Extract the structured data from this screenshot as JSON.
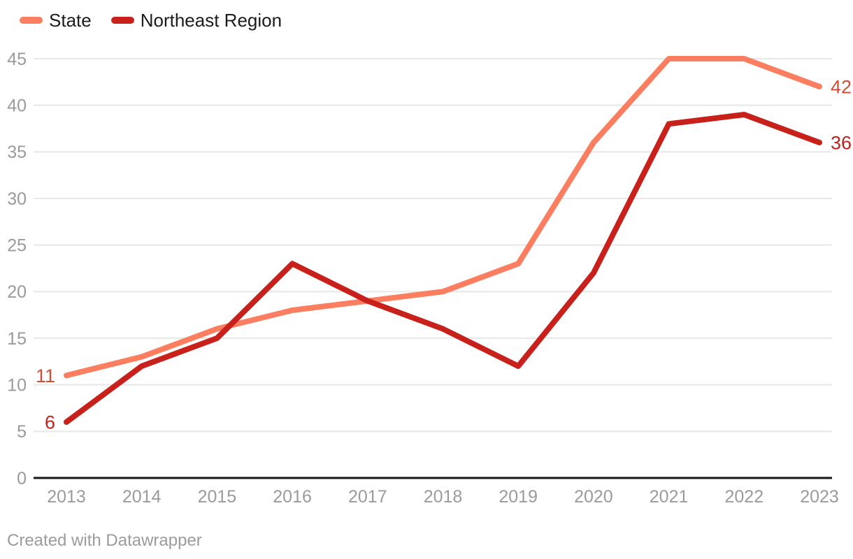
{
  "legend": {
    "items": [
      {
        "label": "State",
        "color": "#fb7e61"
      },
      {
        "label": "Northeast Region",
        "color": "#c8211b"
      }
    ]
  },
  "footer": {
    "text": "Created with Datawrapper"
  },
  "colors": {
    "grid": "#e8e8e8",
    "axis_baseline": "#161616",
    "tick_label": "#9b9b9b",
    "legend_text": "#1c1c1c",
    "background": "#ffffff"
  },
  "chart_data": {
    "type": "line",
    "title": "",
    "xlabel": "",
    "ylabel": "",
    "x": [
      2013,
      2014,
      2015,
      2016,
      2017,
      2018,
      2019,
      2020,
      2021,
      2022,
      2023
    ],
    "series": [
      {
        "name": "State",
        "color": "#fb7e61",
        "label_color": "#ce4f33",
        "values": [
          11,
          13,
          16,
          18,
          19,
          20,
          23,
          36,
          45,
          45,
          42
        ],
        "start_label": "11",
        "end_label": "42"
      },
      {
        "name": "Northeast Region",
        "color": "#c8211b",
        "label_color": "#bd221e",
        "values": [
          6,
          12,
          15,
          23,
          19,
          16,
          12,
          22,
          38,
          39,
          36
        ],
        "start_label": "6",
        "end_label": "36"
      }
    ],
    "ylim": [
      0,
      45
    ],
    "yticks": [
      0,
      5,
      10,
      15,
      20,
      25,
      30,
      35,
      40,
      45
    ],
    "grid": "horizontal",
    "legend_position": "top-left"
  }
}
